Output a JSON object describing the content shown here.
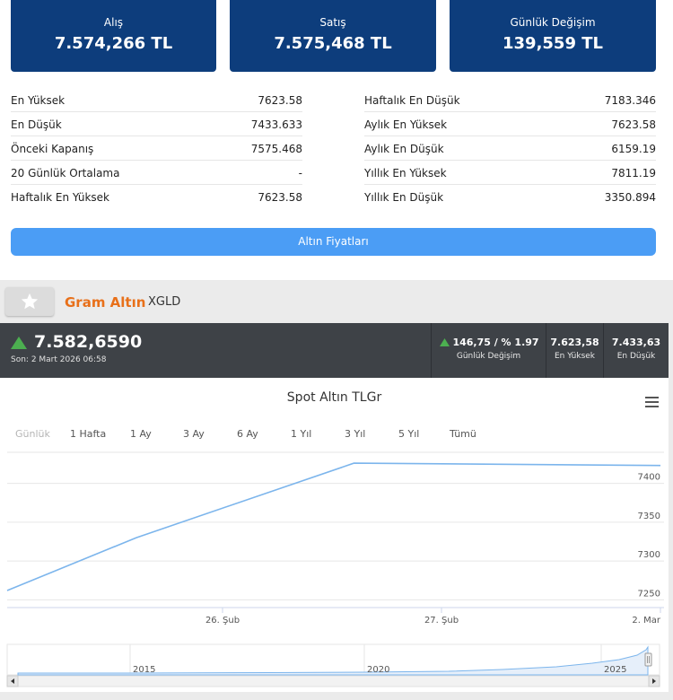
{
  "cards": [
    {
      "label": "Alış",
      "value": "7.574,266 TL"
    },
    {
      "label": "Satış",
      "value": "7.575,468 TL"
    },
    {
      "label": "Günlük Değişim",
      "value": "139,559 TL"
    }
  ],
  "stats_left": [
    {
      "k": "En Yüksek",
      "v": "7623.58"
    },
    {
      "k": "En Düşük",
      "v": "7433.633"
    },
    {
      "k": "Önceki Kapanış",
      "v": "7575.468"
    },
    {
      "k": "20 Günlük Ortalama",
      "v": "-"
    },
    {
      "k": "Haftalık En Yüksek",
      "v": "7623.58"
    }
  ],
  "stats_right": [
    {
      "k": "Haftalık En Düşük",
      "v": "7183.346"
    },
    {
      "k": "Aylık En Yüksek",
      "v": "7623.58"
    },
    {
      "k": "Aylık En Düşük",
      "v": "6159.19"
    },
    {
      "k": "Yıllık En Yüksek",
      "v": "7811.19"
    },
    {
      "k": "Yıllık En Düşük",
      "v": "3350.894"
    }
  ],
  "gold_button": "Altın Fiyatları",
  "instrument": {
    "name": "Gram Altın",
    "code": "XGLD"
  },
  "price_bar": {
    "price": "7.582,6590",
    "time": "Son: 2 Mart 2026 06:58",
    "change_value": "146,75 / % 1.97",
    "change_label": "Günlük Değişim",
    "high_value": "7.623,58",
    "high_label": "En Yüksek",
    "low_value": "7.433,63",
    "low_label": "En Düşük",
    "up_color": "#4caf50"
  },
  "chart": {
    "title": "Spot Altın TLGr",
    "ranges": [
      "Günlük",
      "1 Hafta",
      "1 Ay",
      "3 Ay",
      "6 Ay",
      "1 Yıl",
      "3 Yıl",
      "5 Yıl",
      "Tümü"
    ],
    "navigator_labels": [
      "2015",
      "2020",
      "2025"
    ]
  },
  "chart_data": {
    "type": "line",
    "title": "Spot Altın TLGr",
    "x_ticks": [
      "26. Şub",
      "27. Şub",
      "2. Mar"
    ],
    "y_ticks": [
      7250,
      7300,
      7350,
      7400
    ],
    "ylim": [
      7240,
      7440
    ],
    "x": [
      0,
      0.6,
      1.6,
      3.0
    ],
    "y": [
      7262,
      7330,
      7426,
      7423
    ],
    "grid": true,
    "line_color": "#7cb5ec"
  }
}
